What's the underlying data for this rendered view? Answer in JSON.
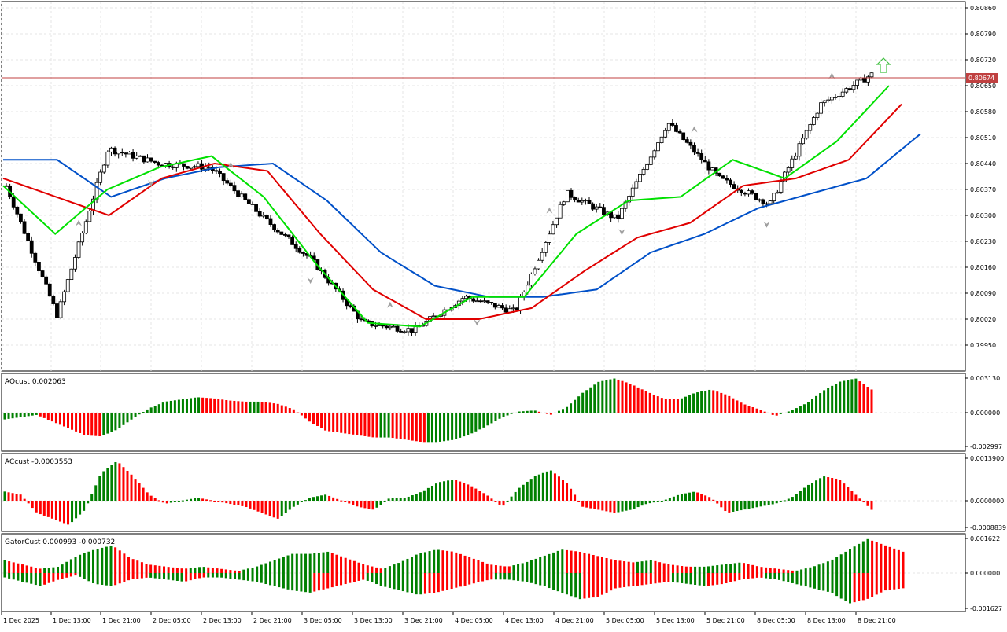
{
  "price_panel": {
    "ticks": [
      "0.80860",
      "0.80790",
      "0.80720",
      "0.80650",
      "0.80580",
      "0.80510",
      "0.80440",
      "0.80370",
      "0.80300",
      "0.80230",
      "0.80160",
      "0.80090",
      "0.80020",
      "0.79950"
    ],
    "current_price_label": "0.80674",
    "up_arrow_icon": "up-arrow-icon"
  },
  "indicators": [
    {
      "key": "ao",
      "title": "AOcust 0.002063",
      "ticks": [
        "0.003130",
        "0.000000",
        "-0.002997"
      ]
    },
    {
      "key": "ac",
      "title": "ACcust -0.0003553",
      "ticks": [
        "0.0013900",
        "0.0000000",
        "-0.0008839"
      ]
    },
    {
      "key": "gator",
      "title": "GatorCust 0.000993 -0.000732",
      "ticks": [
        "0.001622",
        "0.000000",
        "-0.001627"
      ]
    }
  ],
  "time_axis": [
    "1 Dec 2025",
    "1 Dec 13:00",
    "1 Dec 21:00",
    "2 Dec 05:00",
    "2 Dec 13:00",
    "2 Dec 21:00",
    "3 Dec 05:00",
    "3 Dec 13:00",
    "3 Dec 21:00",
    "4 Dec 05:00",
    "4 Dec 13:00",
    "4 Dec 21:00",
    "5 Dec 05:00",
    "5 Dec 13:00",
    "5 Dec 21:00",
    "8 Dec 05:00",
    "8 Dec 13:00",
    "8 Dec 21:00"
  ],
  "colors": {
    "bull": "#ffffff",
    "bear": "#000000",
    "alligator_jaw": "#0050c8",
    "alligator_teeth": "#e00000",
    "alligator_lips": "#00e000",
    "histogram_up": "#008000",
    "histogram_down": "#ff0000",
    "price_line": "#c04040",
    "arrow": "#40c040",
    "fractal": "#a0a0a0"
  },
  "chart_data": [
    {
      "type": "candlestick",
      "title": "",
      "ylim": [
        0.7992,
        0.8088
      ],
      "current_price": 0.80674,
      "x": [
        "1 Dec 2025",
        "1 Dec 13:00",
        "1 Dec 21:00",
        "2 Dec 05:00",
        "2 Dec 13:00",
        "2 Dec 21:00",
        "3 Dec 05:00",
        "3 Dec 13:00",
        "3 Dec 21:00",
        "4 Dec 05:00",
        "4 Dec 13:00",
        "4 Dec 21:00",
        "5 Dec 05:00",
        "5 Dec 13:00",
        "5 Dec 21:00",
        "8 Dec 05:00",
        "8 Dec 13:00",
        "8 Dec 21:00"
      ],
      "close": [
        0.8038,
        0.8003,
        0.8048,
        0.8044,
        0.8043,
        0.803,
        0.8018,
        0.8001,
        0.7999,
        0.8008,
        0.8004,
        0.8036,
        0.8029,
        0.8055,
        0.804,
        0.8033,
        0.806,
        0.8068
      ],
      "series": [
        {
          "name": "Jaw",
          "values": [
            0.8045,
            0.8045,
            0.8035,
            0.804,
            0.8043,
            0.8044,
            0.8034,
            0.802,
            0.8011,
            0.8008,
            0.8008,
            0.801,
            0.802,
            0.8025,
            0.8032,
            0.8036,
            0.804,
            0.8052
          ]
        },
        {
          "name": "Teeth",
          "values": [
            0.804,
            0.8035,
            0.803,
            0.804,
            0.8044,
            0.8042,
            0.8025,
            0.801,
            0.8002,
            0.8002,
            0.8005,
            0.8015,
            0.8024,
            0.8028,
            0.8038,
            0.804,
            0.8045,
            0.806
          ]
        },
        {
          "name": "Lips",
          "values": [
            0.8038,
            0.8025,
            0.8037,
            0.8043,
            0.8046,
            0.8035,
            0.8017,
            0.8001,
            0.8,
            0.8008,
            0.8008,
            0.8025,
            0.8034,
            0.8035,
            0.8045,
            0.804,
            0.805,
            0.8065
          ]
        }
      ]
    },
    {
      "type": "bar",
      "title": "AOcust 0.002063",
      "ylim": [
        -0.002997,
        0.00313
      ],
      "values": [
        -0.0006,
        -0.0004,
        -0.0002,
        -0.0008,
        -0.0014,
        -0.002,
        -0.0021,
        -0.0015,
        -0.0005,
        0.0004,
        0.001,
        0.0012,
        0.0014,
        0.0013,
        0.0011,
        0.001,
        0.001,
        0.0008,
        0.0003,
        -0.0008,
        -0.0016,
        -0.0018,
        -0.002,
        -0.0022,
        -0.0022,
        -0.0024,
        -0.0026,
        -0.0026,
        -0.0024,
        -0.0019,
        -0.0012,
        -0.0004,
        0.0001,
        0.0002,
        -0.0002,
        0.0005,
        0.0018,
        0.0028,
        0.0031,
        0.0026,
        0.0019,
        0.0013,
        0.0012,
        0.0018,
        0.0021,
        0.0016,
        0.0008,
        0.0003,
        -0.0003,
        0.0002,
        0.0009,
        0.002,
        0.0028,
        0.0031,
        0.0021
      ]
    },
    {
      "type": "bar",
      "title": "ACcust -0.0003553",
      "ylim": [
        -0.0008839,
        0.00139
      ],
      "values": [
        0.0003,
        0.0002,
        -0.0004,
        -0.0006,
        -0.0008,
        -0.0003,
        0.0009,
        0.0013,
        0.0008,
        0.0002,
        -0.0001,
        0.0,
        0.0001,
        0.0,
        -0.0001,
        -0.0002,
        -0.0004,
        -0.0006,
        -0.0002,
        0.0001,
        0.0002,
        0.0,
        -0.0002,
        -0.0003,
        0.0001,
        0.0001,
        0.0003,
        0.0006,
        0.0007,
        0.0005,
        0.0002,
        -0.0002,
        0.0004,
        0.0008,
        0.001,
        0.0006,
        -0.0002,
        -0.0003,
        -0.0004,
        -0.0003,
        -0.0001,
        0.0,
        0.0002,
        0.0003,
        0.0001,
        -0.0004,
        -0.0003,
        -0.0002,
        -0.0001,
        0.0001,
        0.0005,
        0.0008,
        0.0007,
        0.0002,
        -0.0003
      ]
    },
    {
      "type": "bar",
      "title": "GatorCust 0.000993 -0.000732",
      "ylim": [
        -0.001627,
        0.001622
      ],
      "upper": [
        0.0006,
        0.0004,
        0.0002,
        0.0003,
        0.0008,
        0.0011,
        0.0013,
        0.0007,
        0.0004,
        0.0003,
        0.0002,
        0.0003,
        0.0002,
        0.0001,
        0.0003,
        0.0006,
        0.0009,
        0.0009,
        0.001,
        0.0007,
        0.0004,
        0.0002,
        0.0005,
        0.0009,
        0.0011,
        0.001,
        0.0007,
        0.0004,
        0.0003,
        0.0005,
        0.0008,
        0.0011,
        0.001,
        0.0008,
        0.0006,
        0.0005,
        0.0006,
        0.0004,
        0.0003,
        0.0003,
        0.0004,
        0.0005,
        0.0003,
        0.0002,
        0.0001,
        0.0003,
        0.0006,
        0.0011,
        0.0016,
        0.0013,
        0.001
      ],
      "lower": [
        -0.0002,
        -0.0004,
        -0.0006,
        -0.0003,
        -0.0001,
        -0.0005,
        -0.0006,
        -0.0003,
        -0.0002,
        -0.0003,
        -0.0004,
        -0.0002,
        -0.0002,
        -0.0003,
        -0.0004,
        -0.0006,
        -0.0008,
        -0.0009,
        -0.0007,
        -0.0005,
        -0.0003,
        -0.0006,
        -0.0008,
        -0.001,
        -0.0009,
        -0.0007,
        -0.0005,
        -0.0003,
        -0.0003,
        -0.0004,
        -0.0006,
        -0.0009,
        -0.0012,
        -0.0011,
        -0.0007,
        -0.0006,
        -0.0005,
        -0.0004,
        -0.0005,
        -0.0006,
        -0.0005,
        -0.0003,
        -0.0002,
        -0.0003,
        -0.0005,
        -0.0007,
        -0.0009,
        -0.0014,
        -0.0012,
        -0.0008,
        -0.0007
      ]
    }
  ]
}
